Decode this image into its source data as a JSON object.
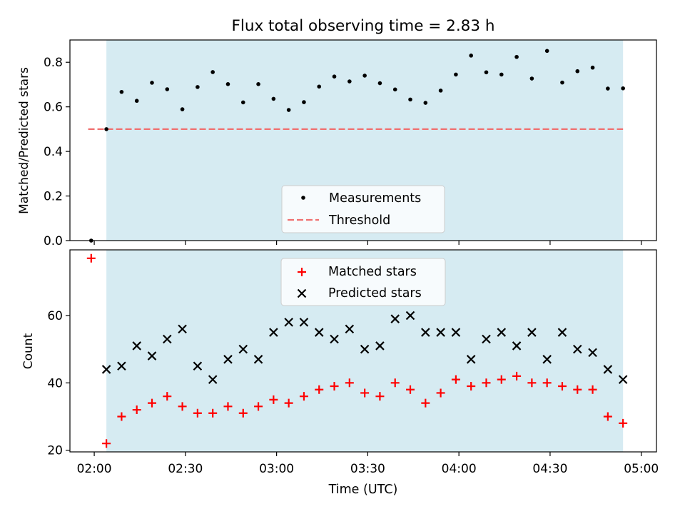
{
  "title": "Flux total observing time = 2.83 h",
  "xlabel": "Time (UTC)",
  "x_ticks": [
    "02:00",
    "02:30",
    "03:00",
    "03:30",
    "04:00",
    "04:30",
    "05:00"
  ],
  "colors": {
    "shade": "#add8e6",
    "threshold": "#f07070",
    "matched": "#ff0000",
    "predicted": "#000000",
    "measurement": "#000000"
  },
  "chart_data": [
    {
      "type": "scatter",
      "panel": "top",
      "ylabel": "Matched/Predicted stars",
      "ylim": [
        0,
        0.9
      ],
      "yticks": [
        "0.0",
        "0.2",
        "0.4",
        "0.6",
        "0.8"
      ],
      "x_axis": "time of day (HH:MM UTC)",
      "shaded_span": [
        "02:04",
        "04:54"
      ],
      "threshold": 0.5,
      "threshold_span": [
        "01:58",
        "04:54"
      ],
      "legend": {
        "placement": "lower center",
        "entries": [
          "Measurements",
          "Threshold"
        ]
      },
      "series": [
        {
          "name": "Measurements",
          "x": [
            "01:59",
            "02:04",
            "02:09",
            "02:14",
            "02:19",
            "02:24",
            "02:29",
            "02:34",
            "02:39",
            "02:44",
            "02:49",
            "02:54",
            "02:59",
            "03:04",
            "03:09",
            "03:14",
            "03:19",
            "03:24",
            "03:29",
            "03:34",
            "03:39",
            "03:44",
            "03:49",
            "03:54",
            "03:59",
            "04:04",
            "04:09",
            "04:14",
            "04:19",
            "04:24",
            "04:29",
            "04:34",
            "04:39",
            "04:44",
            "04:49",
            "04:54"
          ],
          "values": [
            0.0,
            0.5,
            0.667,
            0.627,
            0.708,
            0.679,
            0.589,
            0.689,
            0.756,
            0.702,
            0.62,
            0.702,
            0.636,
            0.586,
            0.621,
            0.691,
            0.736,
            0.714,
            0.74,
            0.706,
            0.678,
            0.633,
            0.618,
            0.673,
            0.745,
            0.83,
            0.755,
            0.745,
            0.824,
            0.727,
            0.851,
            0.709,
            0.76,
            0.776,
            0.682,
            0.683
          ]
        }
      ]
    },
    {
      "type": "scatter",
      "panel": "bottom",
      "ylabel": "Count",
      "ylim": [
        19.5,
        79.5
      ],
      "yticks": [
        "20",
        "40",
        "60"
      ],
      "x_axis": "time of day (HH:MM UTC)",
      "shaded_span": [
        "02:04",
        "04:54"
      ],
      "legend": {
        "placement": "upper center",
        "entries": [
          "Matched stars",
          "Predicted stars"
        ]
      },
      "series": [
        {
          "name": "Matched stars",
          "x": [
            "01:59",
            "02:04",
            "02:09",
            "02:14",
            "02:19",
            "02:24",
            "02:29",
            "02:34",
            "02:39",
            "02:44",
            "02:49",
            "02:54",
            "02:59",
            "03:04",
            "03:09",
            "03:14",
            "03:19",
            "03:24",
            "03:29",
            "03:34",
            "03:39",
            "03:44",
            "03:49",
            "03:54",
            "03:59",
            "04:04",
            "04:09",
            "04:14",
            "04:19",
            "04:24",
            "04:29",
            "04:34",
            "04:39",
            "04:44",
            "04:49",
            "04:54"
          ],
          "values": [
            77,
            22,
            30,
            32,
            34,
            36,
            33,
            31,
            31,
            33,
            31,
            33,
            35,
            34,
            36,
            38,
            39,
            40,
            37,
            36,
            40,
            38,
            34,
            37,
            41,
            39,
            40,
            41,
            42,
            40,
            40,
            39,
            38,
            38,
            30,
            28
          ]
        },
        {
          "name": "Predicted stars",
          "x": [
            "02:04",
            "02:09",
            "02:14",
            "02:19",
            "02:24",
            "02:29",
            "02:34",
            "02:39",
            "02:44",
            "02:49",
            "02:54",
            "02:59",
            "03:04",
            "03:09",
            "03:14",
            "03:19",
            "03:24",
            "03:29",
            "03:34",
            "03:39",
            "03:44",
            "03:49",
            "03:54",
            "03:59",
            "04:04",
            "04:09",
            "04:14",
            "04:19",
            "04:24",
            "04:29",
            "04:34",
            "04:39",
            "04:44",
            "04:49",
            "04:54"
          ],
          "values": [
            44,
            45,
            51,
            48,
            53,
            56,
            45,
            41,
            47,
            50,
            47,
            55,
            58,
            58,
            55,
            53,
            56,
            50,
            51,
            59,
            60,
            55,
            55,
            55,
            47,
            53,
            55,
            51,
            55,
            47,
            55,
            50,
            49,
            44,
            41
          ]
        }
      ]
    }
  ]
}
